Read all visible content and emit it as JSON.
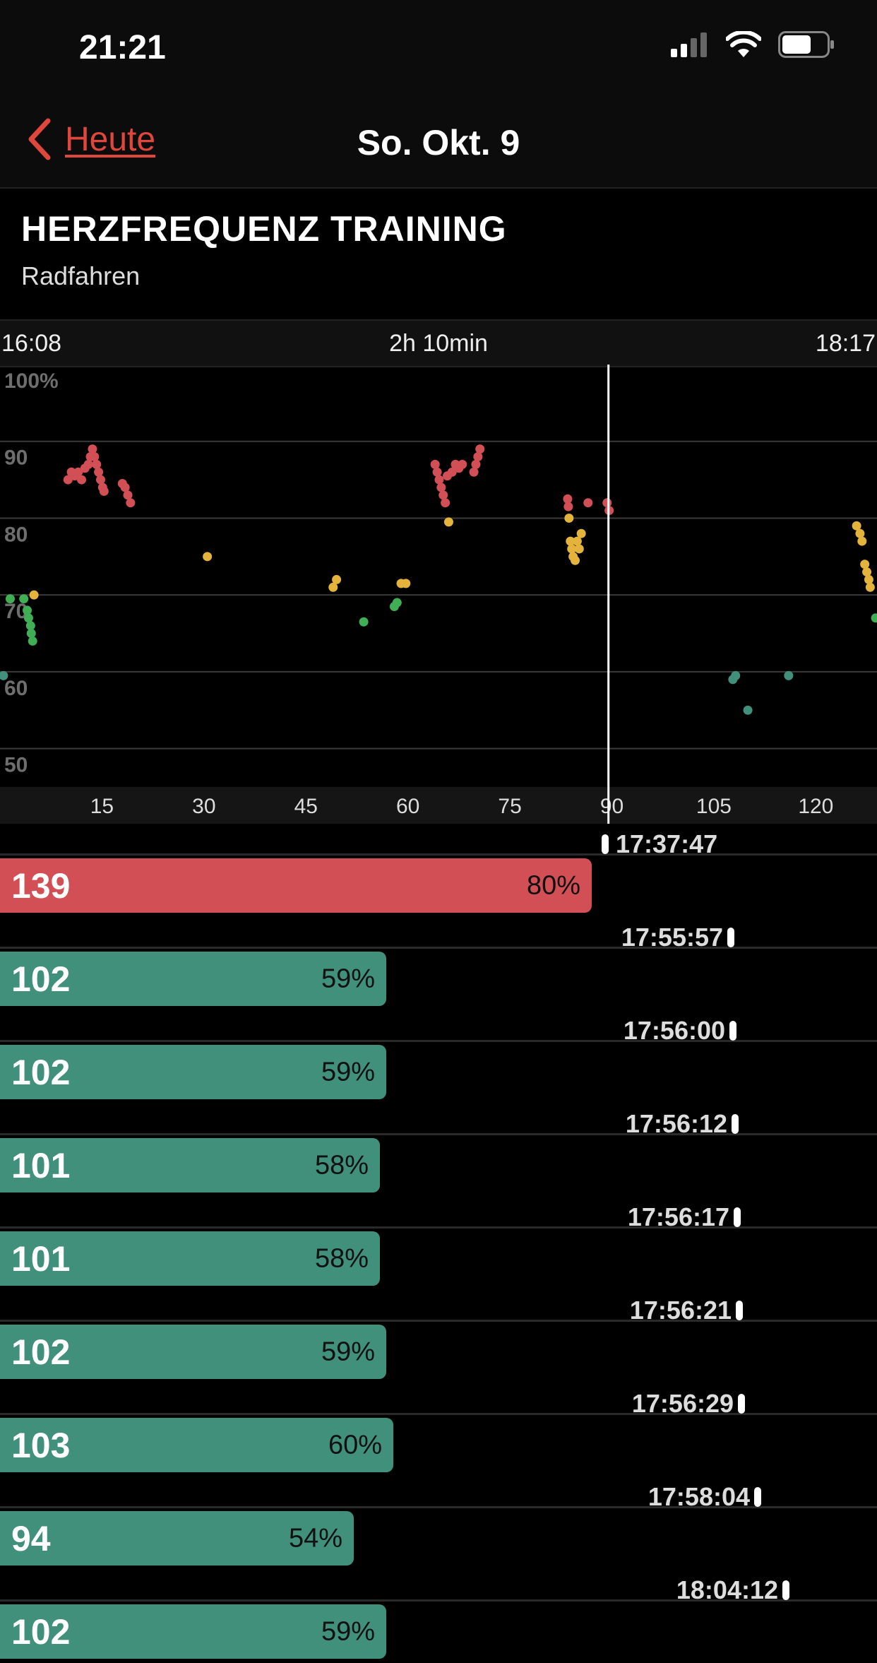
{
  "status": {
    "time": "21:21"
  },
  "nav": {
    "back_label": "Heute",
    "title": "So. Okt. 9"
  },
  "header": {
    "title": "HERZFREQUENZ TRAINING",
    "subtitle": "Radfahren"
  },
  "timebar": {
    "start": "16:08",
    "duration": "2h 10min",
    "end": "18:17"
  },
  "colors": {
    "red": "#d24f55",
    "yellow": "#e3b33b",
    "green": "#3fae55",
    "teal": "#41907c",
    "back": "#e0473c"
  },
  "chart_data": {
    "type": "scatter",
    "xlim": [
      0,
      129
    ],
    "ylim": [
      45,
      100
    ],
    "x_ticks": [
      15,
      30,
      45,
      60,
      75,
      90,
      105,
      120
    ],
    "y_ticks": [
      50,
      60,
      70,
      80,
      90,
      100
    ],
    "y_tick_labels": [
      "50",
      "60",
      "70",
      "80",
      "90",
      "100%"
    ],
    "cursor_x": 89.5,
    "points": [
      {
        "x": 0.5,
        "y": 59.5,
        "c": "teal"
      },
      {
        "x": 1.5,
        "y": 69.5,
        "c": "green"
      },
      {
        "x": 3.5,
        "y": 69.5,
        "c": "green"
      },
      {
        "x": 4,
        "y": 68,
        "c": "green"
      },
      {
        "x": 4.2,
        "y": 67,
        "c": "green"
      },
      {
        "x": 4.5,
        "y": 66,
        "c": "green"
      },
      {
        "x": 4.6,
        "y": 65,
        "c": "green"
      },
      {
        "x": 4.8,
        "y": 64,
        "c": "green"
      },
      {
        "x": 5,
        "y": 70,
        "c": "yellow"
      },
      {
        "x": 10,
        "y": 85,
        "c": "red"
      },
      {
        "x": 10.5,
        "y": 86,
        "c": "red"
      },
      {
        "x": 11,
        "y": 85.5,
        "c": "red"
      },
      {
        "x": 11.5,
        "y": 86,
        "c": "red"
      },
      {
        "x": 12,
        "y": 85,
        "c": "red"
      },
      {
        "x": 12.5,
        "y": 86.5,
        "c": "red"
      },
      {
        "x": 13,
        "y": 87,
        "c": "red"
      },
      {
        "x": 13.3,
        "y": 88,
        "c": "red"
      },
      {
        "x": 13.6,
        "y": 89,
        "c": "red"
      },
      {
        "x": 13.9,
        "y": 88,
        "c": "red"
      },
      {
        "x": 14.2,
        "y": 87,
        "c": "red"
      },
      {
        "x": 14.5,
        "y": 86,
        "c": "red"
      },
      {
        "x": 14.8,
        "y": 85,
        "c": "red"
      },
      {
        "x": 15.1,
        "y": 84,
        "c": "red"
      },
      {
        "x": 15.3,
        "y": 83.5,
        "c": "red"
      },
      {
        "x": 18,
        "y": 84.5,
        "c": "red"
      },
      {
        "x": 18.4,
        "y": 84,
        "c": "red"
      },
      {
        "x": 18.8,
        "y": 83,
        "c": "red"
      },
      {
        "x": 19.2,
        "y": 82,
        "c": "red"
      },
      {
        "x": 30.5,
        "y": 75,
        "c": "yellow"
      },
      {
        "x": 49,
        "y": 71,
        "c": "yellow"
      },
      {
        "x": 49.5,
        "y": 72,
        "c": "yellow"
      },
      {
        "x": 53.5,
        "y": 66.5,
        "c": "green"
      },
      {
        "x": 58,
        "y": 68.5,
        "c": "green"
      },
      {
        "x": 58.4,
        "y": 69,
        "c": "green"
      },
      {
        "x": 59,
        "y": 71.5,
        "c": "yellow"
      },
      {
        "x": 59.7,
        "y": 71.5,
        "c": "yellow"
      },
      {
        "x": 64,
        "y": 87,
        "c": "red"
      },
      {
        "x": 64.3,
        "y": 86,
        "c": "red"
      },
      {
        "x": 64.6,
        "y": 85,
        "c": "red"
      },
      {
        "x": 64.9,
        "y": 84,
        "c": "red"
      },
      {
        "x": 65.2,
        "y": 83,
        "c": "red"
      },
      {
        "x": 65.5,
        "y": 82,
        "c": "red"
      },
      {
        "x": 65.8,
        "y": 85.5,
        "c": "red"
      },
      {
        "x": 66,
        "y": 79.5,
        "c": "yellow"
      },
      {
        "x": 66.5,
        "y": 86,
        "c": "red"
      },
      {
        "x": 67,
        "y": 87,
        "c": "red"
      },
      {
        "x": 67.5,
        "y": 86.5,
        "c": "red"
      },
      {
        "x": 68,
        "y": 87,
        "c": "red"
      },
      {
        "x": 69.7,
        "y": 86,
        "c": "red"
      },
      {
        "x": 70,
        "y": 87,
        "c": "red"
      },
      {
        "x": 70.3,
        "y": 88,
        "c": "red"
      },
      {
        "x": 70.6,
        "y": 89,
        "c": "red"
      },
      {
        "x": 83.5,
        "y": 82.5,
        "c": "red"
      },
      {
        "x": 83.6,
        "y": 81.5,
        "c": "red"
      },
      {
        "x": 83.7,
        "y": 80,
        "c": "yellow"
      },
      {
        "x": 83.9,
        "y": 77,
        "c": "yellow"
      },
      {
        "x": 84.1,
        "y": 76,
        "c": "yellow"
      },
      {
        "x": 84.3,
        "y": 75,
        "c": "yellow"
      },
      {
        "x": 84.6,
        "y": 74.5,
        "c": "yellow"
      },
      {
        "x": 84.9,
        "y": 77,
        "c": "yellow"
      },
      {
        "x": 85.2,
        "y": 76,
        "c": "yellow"
      },
      {
        "x": 85.5,
        "y": 78,
        "c": "yellow"
      },
      {
        "x": 86.5,
        "y": 82,
        "c": "red"
      },
      {
        "x": 89.3,
        "y": 82,
        "c": "red"
      },
      {
        "x": 89.6,
        "y": 81,
        "c": "red"
      },
      {
        "x": 107.8,
        "y": 59,
        "c": "teal"
      },
      {
        "x": 108.2,
        "y": 59.5,
        "c": "teal"
      },
      {
        "x": 110,
        "y": 55,
        "c": "teal"
      },
      {
        "x": 116,
        "y": 59.5,
        "c": "teal"
      },
      {
        "x": 126,
        "y": 79,
        "c": "yellow"
      },
      {
        "x": 126.5,
        "y": 78,
        "c": "yellow"
      },
      {
        "x": 126.8,
        "y": 77,
        "c": "yellow"
      },
      {
        "x": 127.2,
        "y": 74,
        "c": "yellow"
      },
      {
        "x": 127.5,
        "y": 73,
        "c": "yellow"
      },
      {
        "x": 127.8,
        "y": 72,
        "c": "yellow"
      },
      {
        "x": 128,
        "y": 71,
        "c": "yellow"
      },
      {
        "x": 128.8,
        "y": 67,
        "c": "green"
      }
    ]
  },
  "list": [
    {
      "time": "17:37:47",
      "bpm": "139",
      "pct": "80%",
      "fraction": 0.8,
      "color": "red"
    },
    {
      "time": "17:55:57",
      "bpm": "102",
      "pct": "59%",
      "fraction": 0.59,
      "color": "teal"
    },
    {
      "time": "17:56:00",
      "bpm": "102",
      "pct": "59%",
      "fraction": 0.59,
      "color": "teal"
    },
    {
      "time": "17:56:12",
      "bpm": "101",
      "pct": "58%",
      "fraction": 0.58,
      "color": "teal"
    },
    {
      "time": "17:56:17",
      "bpm": "101",
      "pct": "58%",
      "fraction": 0.58,
      "color": "teal"
    },
    {
      "time": "17:56:21",
      "bpm": "102",
      "pct": "59%",
      "fraction": 0.59,
      "color": "teal"
    },
    {
      "time": "17:56:29",
      "bpm": "103",
      "pct": "60%",
      "fraction": 0.6,
      "color": "teal"
    },
    {
      "time": "17:58:04",
      "bpm": "94",
      "pct": "54%",
      "fraction": 0.54,
      "color": "teal"
    },
    {
      "time": "18:04:12",
      "bpm": "102",
      "pct": "59%",
      "fraction": 0.59,
      "color": "teal"
    }
  ]
}
